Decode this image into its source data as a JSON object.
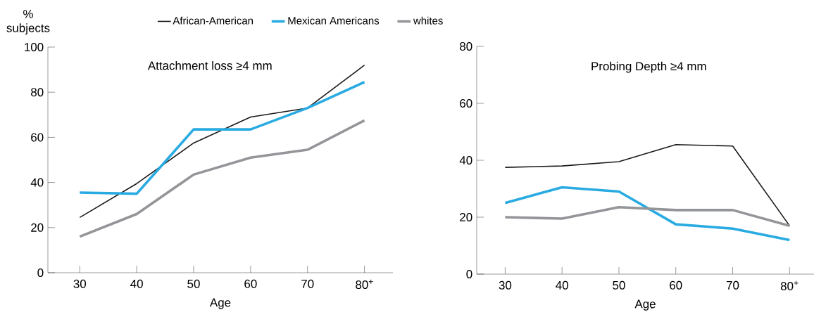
{
  "chart_data": [
    {
      "type": "line",
      "title": "Attachment loss ≥4 mm",
      "xlabel": "Age",
      "ylabel": "% subjects",
      "categories": [
        "30",
        "40",
        "50",
        "60",
        "70",
        "80$^{+}$"
      ],
      "ylim": [
        0,
        100
      ],
      "yticks": [
        0,
        20,
        40,
        60,
        80,
        100
      ],
      "legend": "top",
      "grid": false,
      "series": [
        {
          "name": "African-American",
          "color": "#1a1a1a",
          "values": [
            24.5,
            39.5,
            57.5,
            69,
            73,
            92
          ]
        },
        {
          "name": "Mexican Americans",
          "color": "#29abe2",
          "values": [
            35.5,
            35,
            63.5,
            63.5,
            73,
            84.5
          ]
        },
        {
          "name": "whites",
          "color": "#939598",
          "values": [
            16,
            26,
            43.5,
            51,
            54.5,
            67.5
          ]
        }
      ]
    },
    {
      "type": "line",
      "title": "Probing Depth ≥4 mm",
      "xlabel": "Age",
      "categories": [
        "30",
        "40",
        "50",
        "60",
        "70",
        "80$^{+}$"
      ],
      "ylim": [
        0,
        80
      ],
      "yticks": [
        0,
        20,
        40,
        60,
        80
      ],
      "grid": false,
      "series": [
        {
          "color": "#1a1a1a",
          "values": [
            37.5,
            38,
            39.5,
            45.5,
            45,
            17
          ]
        },
        {
          "color": "#29abe2",
          "values": [
            25,
            30.5,
            29,
            17.5,
            16,
            12
          ]
        },
        {
          "color": "#939598",
          "values": [
            20,
            19.5,
            23.5,
            22.5,
            22.5,
            17
          ]
        }
      ]
    }
  ]
}
